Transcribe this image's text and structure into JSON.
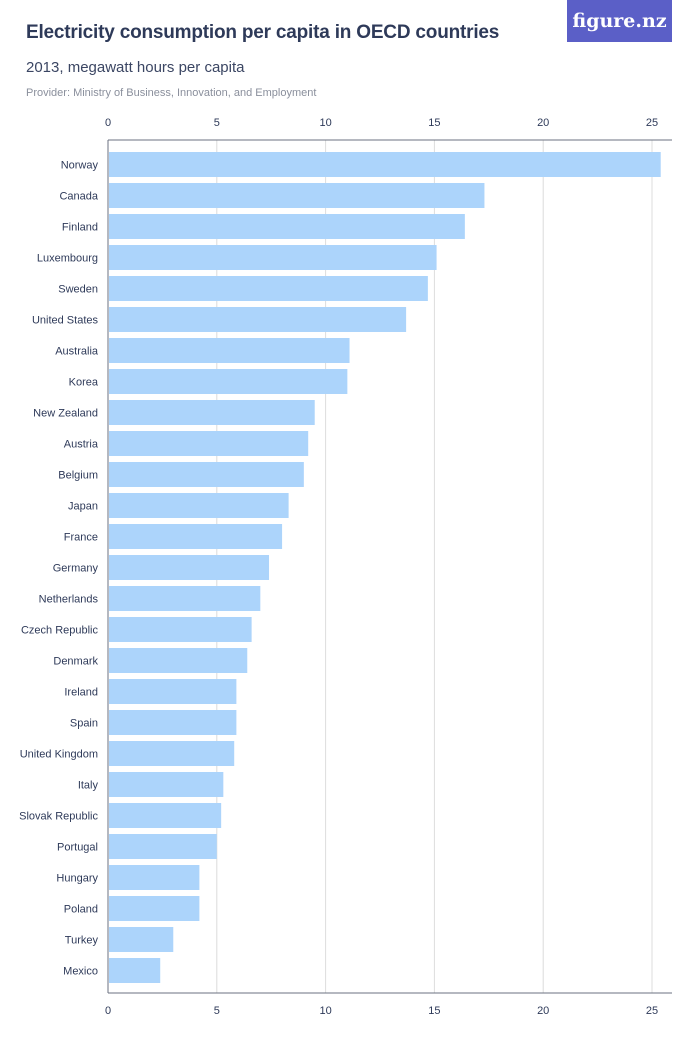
{
  "header": {
    "title": "Electricity consumption per capita in OECD countries",
    "subtitle": "2013, megawatt hours per capita",
    "provider": "Provider: Ministry of Business, Innovation, and Employment",
    "logo_text": "figure.nz"
  },
  "colors": {
    "bar": "#acd4fb",
    "grid": "#dcdcdc",
    "axis": "#6b7280",
    "text": "#2e3a59",
    "logo_bg": "#5b5fc7"
  },
  "chart_data": {
    "type": "bar",
    "orientation": "horizontal",
    "title": "Electricity consumption per capita in OECD countries",
    "subtitle": "2013, megawatt hours per capita",
    "xlim": [
      0,
      25.5
    ],
    "ticks": [
      0,
      5,
      10,
      15,
      20,
      25
    ],
    "grid": true,
    "categories": [
      "Norway",
      "Canada",
      "Finland",
      "Luxembourg",
      "Sweden",
      "United States",
      "Australia",
      "Korea",
      "New Zealand",
      "Austria",
      "Belgium",
      "Japan",
      "France",
      "Germany",
      "Netherlands",
      "Czech Republic",
      "Denmark",
      "Ireland",
      "Spain",
      "United Kingdom",
      "Italy",
      "Slovak Republic",
      "Portugal",
      "Hungary",
      "Poland",
      "Turkey",
      "Mexico"
    ],
    "values": [
      25.4,
      17.3,
      16.4,
      15.1,
      14.7,
      13.7,
      11.1,
      11.0,
      9.5,
      9.2,
      9.0,
      8.3,
      8.0,
      7.4,
      7.0,
      6.6,
      6.4,
      5.9,
      5.9,
      5.8,
      5.3,
      5.2,
      5.0,
      4.2,
      4.2,
      3.0,
      2.4
    ]
  }
}
